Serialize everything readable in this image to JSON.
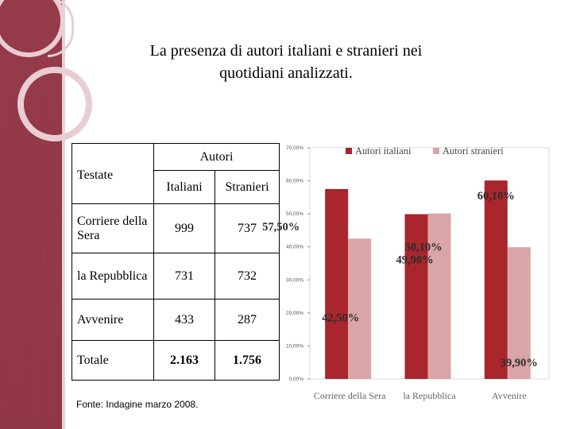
{
  "title": {
    "line1": "La presenza di autori italiani e stranieri nei",
    "line2": "quotidiani analizzati."
  },
  "table": {
    "header_testate": "Testate",
    "header_autori": "Autori",
    "col_italiani": "Italiani",
    "col_stranieri": "Stranieri",
    "rows": [
      {
        "name": "Corriere della Sera",
        "italiani": "999",
        "stranieri": "737"
      },
      {
        "name": "la Repubblica",
        "italiani": "731",
        "stranieri": "732"
      },
      {
        "name": "Avvenire",
        "italiani": "433",
        "stranieri": "287"
      },
      {
        "name": "Totale",
        "italiani": "2.163",
        "stranieri": "1.756"
      }
    ]
  },
  "source": "Fonte: Indagine marzo 2008.",
  "chart_data": {
    "type": "bar",
    "categories": [
      "Corriere della Sera",
      "la Repubblica",
      "Avvenire"
    ],
    "series": [
      {
        "name": "Autori italiani",
        "color": "#a8262c",
        "values": [
          57.5,
          49.9,
          60.1
        ]
      },
      {
        "name": "Autori stranieri",
        "color": "#d9a5a8",
        "values": [
          42.5,
          50.1,
          39.9
        ]
      }
    ],
    "data_labels": {
      "italiani": [
        "57,50%",
        "49,90%",
        "60,10%"
      ],
      "stranieri": [
        "42,50%",
        "50,10%",
        "39,90%"
      ]
    },
    "yticks": [
      "0,00%",
      "10,00%",
      "20,00%",
      "30,00%",
      "40,00%",
      "50,00%",
      "60,00%",
      "70,00%"
    ],
    "ylim": [
      0,
      70
    ],
    "legend_position": "top",
    "title": "",
    "xlabel": "",
    "ylabel": ""
  }
}
